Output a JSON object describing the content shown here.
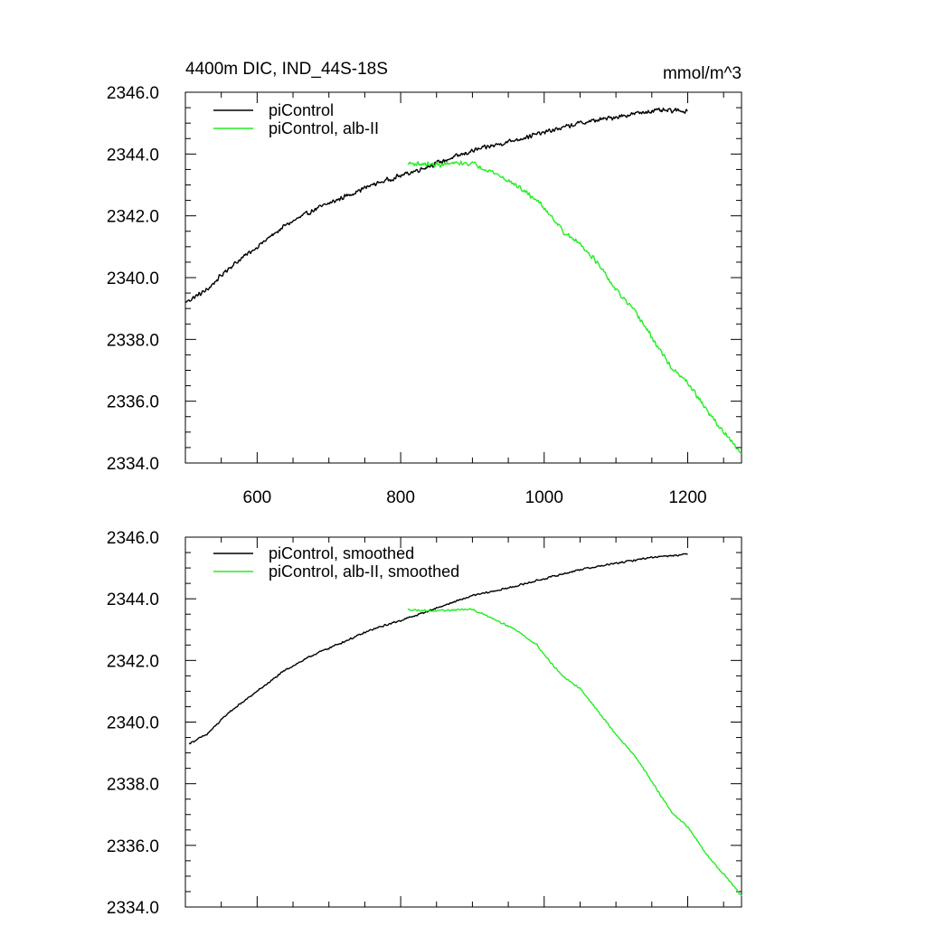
{
  "chart_data": [
    {
      "type": "line",
      "title": "4400m DIC, IND_44S-18S",
      "units": "mmol/m^3",
      "xlim": [
        500,
        1275
      ],
      "ylim": [
        2334.0,
        2346.0
      ],
      "x_ticks": [
        600,
        800,
        1000,
        1200
      ],
      "x_tick_labels": [
        "600",
        "800",
        "1000",
        "1200"
      ],
      "y_ticks": [
        2334.0,
        2336.0,
        2338.0,
        2340.0,
        2342.0,
        2344.0,
        2346.0
      ],
      "y_tick_labels": [
        "2334.0",
        "2336.0",
        "2338.0",
        "2340.0",
        "2342.0",
        "2344.0",
        "2346.0"
      ],
      "grid": false,
      "legend_position": "top-left",
      "series": [
        {
          "name": "piControl",
          "color": "#000000",
          "noise": 0.18,
          "points": [
            [
              500,
              2339.2
            ],
            [
              530,
              2339.6
            ],
            [
              560,
              2340.3
            ],
            [
              600,
              2341.0
            ],
            [
              640,
              2341.7
            ],
            [
              680,
              2342.2
            ],
            [
              720,
              2342.6
            ],
            [
              760,
              2343.0
            ],
            [
              800,
              2343.3
            ],
            [
              820,
              2343.45
            ],
            [
              850,
              2343.7
            ],
            [
              900,
              2344.1
            ],
            [
              950,
              2344.4
            ],
            [
              1000,
              2344.7
            ],
            [
              1050,
              2345.0
            ],
            [
              1100,
              2345.2
            ],
            [
              1150,
              2345.4
            ],
            [
              1200,
              2345.4
            ]
          ]
        },
        {
          "name": "piControl, alb-II",
          "color": "#22ee22",
          "noise": 0.18,
          "points": [
            [
              810,
              2343.7
            ],
            [
              850,
              2343.65
            ],
            [
              880,
              2343.7
            ],
            [
              900,
              2343.7
            ],
            [
              930,
              2343.4
            ],
            [
              960,
              2343.0
            ],
            [
              990,
              2342.5
            ],
            [
              1010,
              2342.0
            ],
            [
              1030,
              2341.4
            ],
            [
              1050,
              2341.1
            ],
            [
              1070,
              2340.6
            ],
            [
              1100,
              2339.6
            ],
            [
              1130,
              2338.8
            ],
            [
              1160,
              2337.7
            ],
            [
              1180,
              2337.0
            ],
            [
              1200,
              2336.6
            ],
            [
              1230,
              2335.6
            ],
            [
              1260,
              2334.7
            ],
            [
              1275,
              2334.3
            ]
          ]
        }
      ]
    },
    {
      "type": "line",
      "title": "",
      "xlim": [
        500,
        1275
      ],
      "ylim": [
        2334.0,
        2346.0
      ],
      "x_ticks": [
        600,
        800,
        1000,
        1200
      ],
      "x_tick_labels": [],
      "y_ticks": [
        2334.0,
        2336.0,
        2338.0,
        2340.0,
        2342.0,
        2344.0,
        2346.0
      ],
      "y_tick_labels": [
        "2334.0",
        "2336.0",
        "2338.0",
        "2340.0",
        "2342.0",
        "2344.0",
        "2346.0"
      ],
      "grid": false,
      "legend_position": "top-left",
      "series": [
        {
          "name": "piControl, smoothed",
          "color": "#000000",
          "noise": 0.07,
          "points": [
            [
              505,
              2339.3
            ],
            [
              530,
              2339.6
            ],
            [
              560,
              2340.3
            ],
            [
              600,
              2341.0
            ],
            [
              640,
              2341.7
            ],
            [
              680,
              2342.2
            ],
            [
              720,
              2342.6
            ],
            [
              760,
              2343.0
            ],
            [
              800,
              2343.3
            ],
            [
              820,
              2343.45
            ],
            [
              850,
              2343.7
            ],
            [
              900,
              2344.1
            ],
            [
              950,
              2344.35
            ],
            [
              1000,
              2344.65
            ],
            [
              1050,
              2344.95
            ],
            [
              1100,
              2345.15
            ],
            [
              1150,
              2345.35
            ],
            [
              1200,
              2345.45
            ]
          ]
        },
        {
          "name": "piControl, alb-II, smoothed",
          "color": "#22ee22",
          "noise": 0.07,
          "points": [
            [
              810,
              2343.65
            ],
            [
              850,
              2343.6
            ],
            [
              880,
              2343.65
            ],
            [
              900,
              2343.65
            ],
            [
              930,
              2343.35
            ],
            [
              960,
              2343.0
            ],
            [
              990,
              2342.5
            ],
            [
              1010,
              2341.9
            ],
            [
              1030,
              2341.4
            ],
            [
              1050,
              2341.1
            ],
            [
              1070,
              2340.5
            ],
            [
              1100,
              2339.6
            ],
            [
              1130,
              2338.8
            ],
            [
              1160,
              2337.7
            ],
            [
              1180,
              2337.0
            ],
            [
              1200,
              2336.6
            ],
            [
              1230,
              2335.6
            ],
            [
              1260,
              2334.8
            ],
            [
              1275,
              2334.35
            ]
          ]
        }
      ]
    }
  ]
}
